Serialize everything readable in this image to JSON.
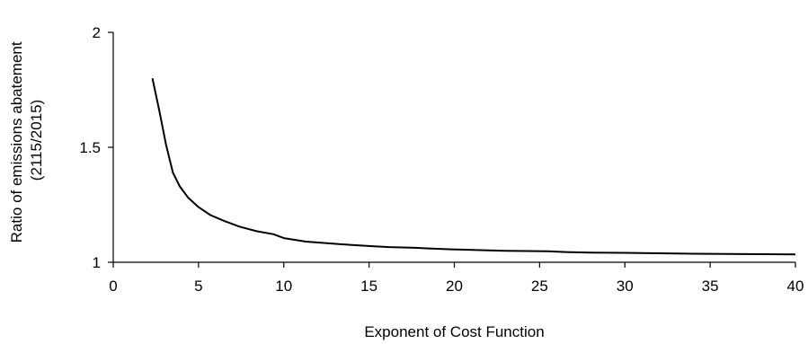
{
  "chart_data": {
    "type": "line",
    "xlabel": "Exponent of Cost Function",
    "ylabel_lines": [
      "Ratio of emissions abatement",
      "(2115/2015)"
    ],
    "xlim": [
      0,
      40
    ],
    "ylim": [
      1,
      2
    ],
    "xticks": [
      0,
      5,
      10,
      15,
      20,
      25,
      30,
      35,
      40
    ],
    "yticks": [
      1,
      1.5,
      2
    ],
    "xtick_labels": [
      "0",
      "5",
      "10",
      "15",
      "20",
      "25",
      "30",
      "35",
      "40"
    ],
    "ytick_labels": [
      "1",
      "1.5",
      "2"
    ],
    "grid": false,
    "legend": "none",
    "series": [
      {
        "x": [
          2.3,
          2.7,
          3.1,
          3.5,
          3.9,
          4.4,
          5.0,
          5.7,
          6.5,
          7.4,
          8.4,
          9.4,
          10.0,
          11.3,
          12.7,
          14.0,
          15.2,
          16.2,
          17.7,
          18.5,
          20.0,
          22.0,
          23.0,
          25.5,
          26.7,
          28.0,
          30.0,
          32.0,
          34.0,
          36.0,
          38.0,
          40.0
        ],
        "values": [
          1.8,
          1.66,
          1.51,
          1.39,
          1.33,
          1.28,
          1.24,
          1.205,
          1.18,
          1.155,
          1.135,
          1.122,
          1.105,
          1.09,
          1.082,
          1.075,
          1.07,
          1.066,
          1.063,
          1.06,
          1.056,
          1.052,
          1.05,
          1.048,
          1.044,
          1.042,
          1.041,
          1.039,
          1.037,
          1.036,
          1.035,
          1.034
        ]
      }
    ]
  }
}
